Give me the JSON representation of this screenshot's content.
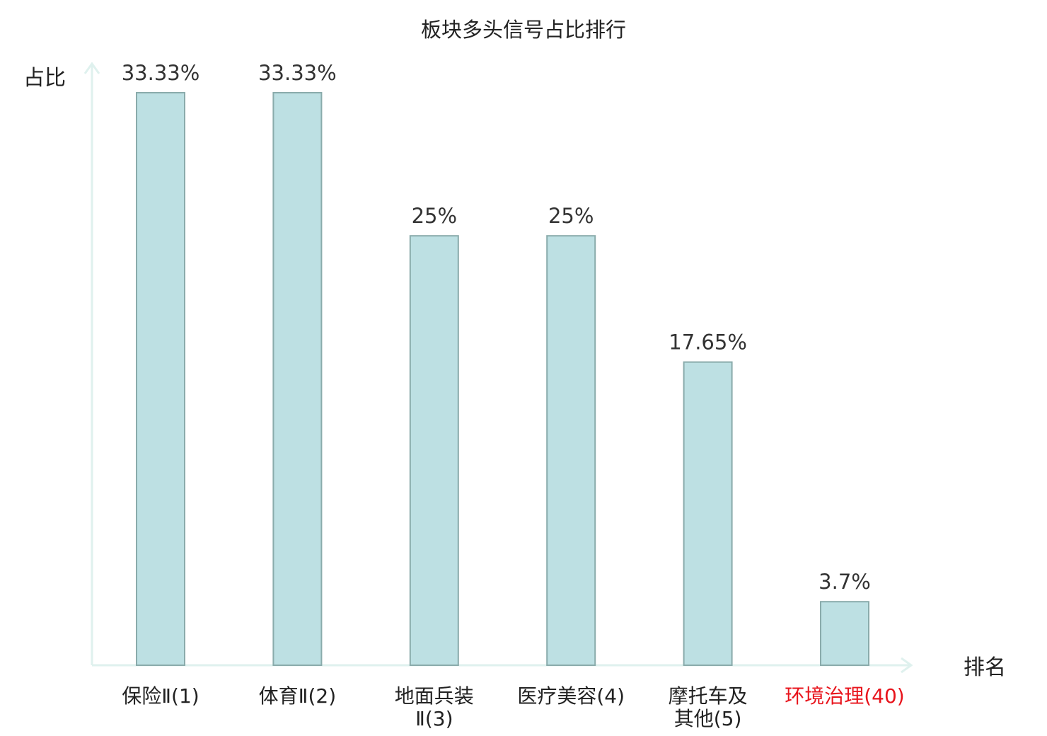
{
  "colors": {
    "bar_fill": "#bde0e3",
    "bar_stroke": "#8aabab",
    "axis": "#dff1ee",
    "highlight": "#e8141c"
  },
  "chart_data": {
    "type": "bar",
    "title": "板块多头信号占比排行",
    "ylabel": "占比",
    "xlabel": "排名",
    "categories": [
      [
        "保险Ⅱ(1)"
      ],
      [
        "体育Ⅱ(2)"
      ],
      [
        "地面兵装",
        "Ⅱ(3)"
      ],
      [
        "医疗美容(4)"
      ],
      [
        "摩托车及",
        "其他(5)"
      ],
      [
        "环境治理(40)"
      ]
    ],
    "values": [
      33.33,
      33.33,
      25,
      25,
      17.65,
      3.7
    ],
    "value_labels": [
      "33.33%",
      "33.33%",
      "25%",
      "25%",
      "17.65%",
      "3.7%"
    ],
    "highlight_index": 5,
    "ylim": [
      0,
      33.33
    ],
    "grid": false,
    "legend": "none"
  }
}
